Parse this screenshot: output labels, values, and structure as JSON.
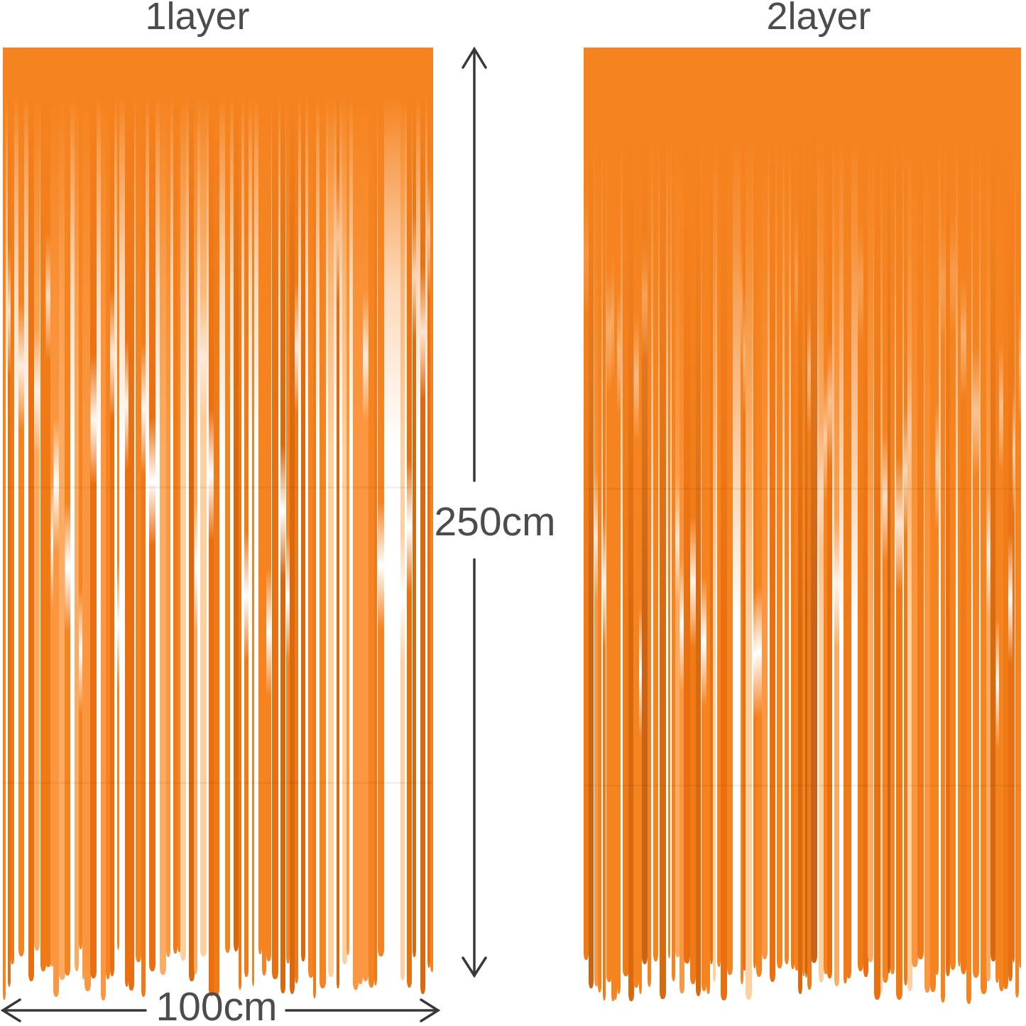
{
  "curtains": [
    {
      "label": "1layer"
    },
    {
      "label": "2layer"
    }
  ],
  "dimensions": {
    "height": "250cm",
    "width": "100cm"
  },
  "colors": {
    "curtain_orange": "#F5831F",
    "text": "#4C4C4C",
    "arrow": "#383838"
  }
}
